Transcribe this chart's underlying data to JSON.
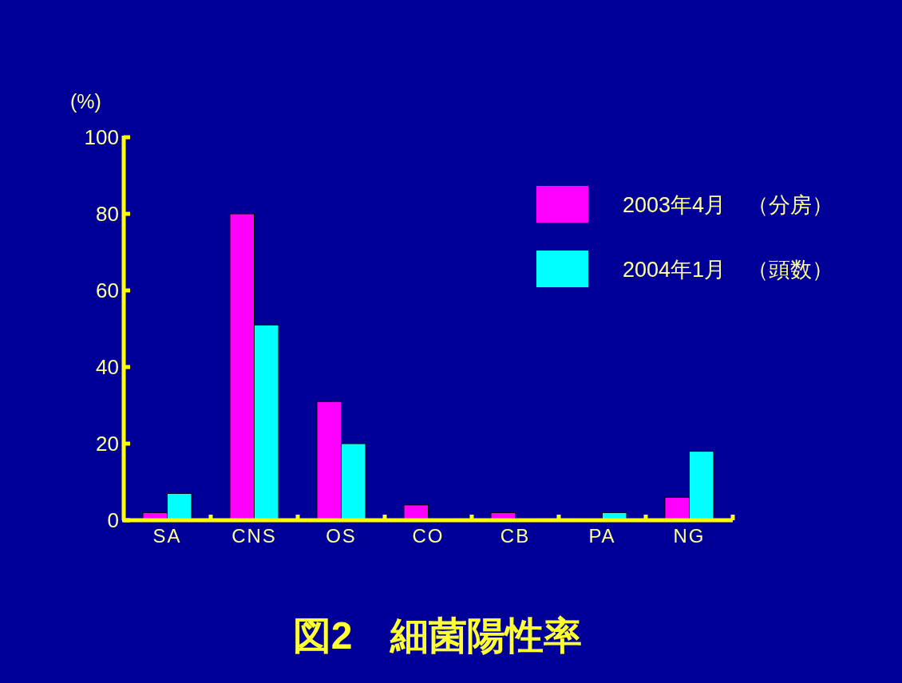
{
  "chart_data": {
    "type": "bar",
    "title": "図2　細菌陽性率",
    "ylabel": "(%)",
    "categories": [
      "SA",
      "CNS",
      "OS",
      "CO",
      "CB",
      "PA",
      "NG"
    ],
    "series": [
      {
        "name": "2003年4月　（分房）",
        "color": "#ff00ff",
        "values": [
          2,
          80,
          31,
          4,
          2,
          0,
          6
        ]
      },
      {
        "name": "2004年1月　（頭数）",
        "color": "#00ffff",
        "values": [
          7,
          51,
          20,
          0,
          0,
          2,
          18
        ]
      }
    ],
    "ylim": [
      0,
      100
    ],
    "yticks": [
      0,
      20,
      40,
      60,
      80,
      100
    ],
    "legend": "top right",
    "grid": false
  }
}
